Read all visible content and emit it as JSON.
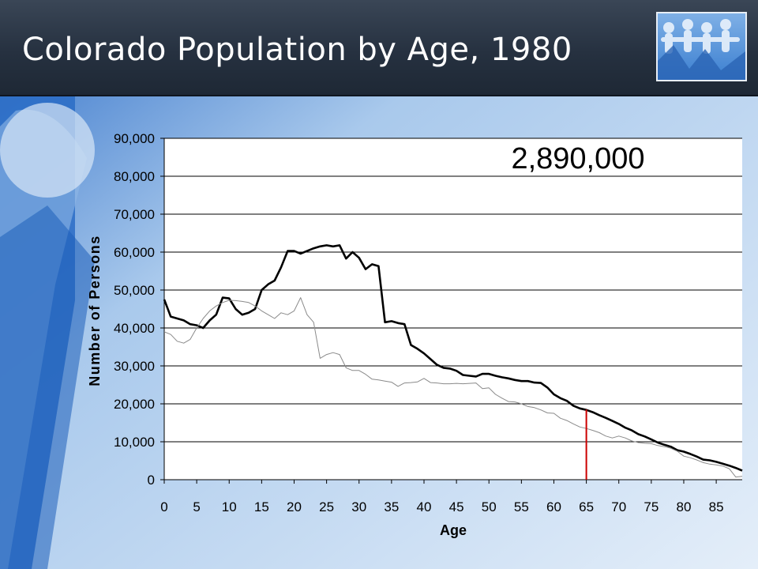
{
  "slide": {
    "title": "Colorado Population by Age, 1980",
    "accent_color": "#1e2835"
  },
  "chart_data": {
    "type": "line",
    "title": "",
    "xlabel": "Age",
    "ylabel": "Number of Persons",
    "xlim": [
      0,
      89
    ],
    "ylim": [
      0,
      90000
    ],
    "x_ticks": [
      0,
      5,
      10,
      15,
      20,
      25,
      30,
      35,
      40,
      45,
      50,
      55,
      60,
      65,
      70,
      75,
      80,
      85
    ],
    "y_ticks": [
      0,
      10000,
      20000,
      30000,
      40000,
      50000,
      60000,
      70000,
      80000,
      90000
    ],
    "y_tick_labels": [
      "0",
      "10,000",
      "20,000",
      "30,000",
      "40,000",
      "50,000",
      "60,000",
      "70,000",
      "80,000",
      "90,000"
    ],
    "grid": "horizontal",
    "annotation": "2,890,000",
    "marker_line": {
      "x": 65,
      "y_top": 18500,
      "color": "#cc0000"
    },
    "series": [
      {
        "color": "#000000",
        "stroke": "thick",
        "points": [
          [
            0,
            47500
          ],
          [
            1,
            43000
          ],
          [
            2,
            42500
          ],
          [
            3,
            42000
          ],
          [
            4,
            41000
          ],
          [
            5,
            40700
          ],
          [
            6,
            40000
          ],
          [
            7,
            42000
          ],
          [
            8,
            43500
          ],
          [
            9,
            48000
          ],
          [
            10,
            47800
          ],
          [
            11,
            45000
          ],
          [
            12,
            43500
          ],
          [
            13,
            44000
          ],
          [
            14,
            45000
          ],
          [
            15,
            50000
          ],
          [
            16,
            51500
          ],
          [
            17,
            52500
          ],
          [
            18,
            56000
          ],
          [
            19,
            60300
          ],
          [
            20,
            60300
          ],
          [
            21,
            59600
          ],
          [
            22,
            60300
          ],
          [
            23,
            61000
          ],
          [
            24,
            61500
          ],
          [
            25,
            61800
          ],
          [
            26,
            61500
          ],
          [
            27,
            61800
          ],
          [
            28,
            58300
          ],
          [
            29,
            60000
          ],
          [
            30,
            58500
          ],
          [
            31,
            55500
          ],
          [
            32,
            56800
          ],
          [
            33,
            56300
          ],
          [
            34,
            41500
          ],
          [
            35,
            41800
          ],
          [
            36,
            41300
          ],
          [
            37,
            41000
          ],
          [
            38,
            35500
          ],
          [
            39,
            34500
          ],
          [
            40,
            33300
          ],
          [
            41,
            31800
          ],
          [
            42,
            30300
          ],
          [
            43,
            29500
          ],
          [
            44,
            29300
          ],
          [
            45,
            28700
          ],
          [
            46,
            27600
          ],
          [
            47,
            27400
          ],
          [
            48,
            27200
          ],
          [
            49,
            27900
          ],
          [
            50,
            27900
          ],
          [
            51,
            27400
          ],
          [
            52,
            27000
          ],
          [
            53,
            26700
          ],
          [
            54,
            26300
          ],
          [
            55,
            26000
          ],
          [
            56,
            26000
          ],
          [
            57,
            25600
          ],
          [
            58,
            25500
          ],
          [
            59,
            24300
          ],
          [
            60,
            22500
          ],
          [
            61,
            21500
          ],
          [
            62,
            20800
          ],
          [
            63,
            19500
          ],
          [
            64,
            18800
          ],
          [
            65,
            18400
          ],
          [
            66,
            17800
          ],
          [
            67,
            17000
          ],
          [
            68,
            16300
          ],
          [
            69,
            15500
          ],
          [
            70,
            14700
          ],
          [
            71,
            13700
          ],
          [
            72,
            13000
          ],
          [
            73,
            12000
          ],
          [
            74,
            11400
          ],
          [
            75,
            10600
          ],
          [
            76,
            9800
          ],
          [
            77,
            9200
          ],
          [
            78,
            8700
          ],
          [
            79,
            7800
          ],
          [
            80,
            7400
          ],
          [
            81,
            6800
          ],
          [
            82,
            6100
          ],
          [
            83,
            5300
          ],
          [
            84,
            5100
          ],
          [
            85,
            4700
          ],
          [
            86,
            4200
          ],
          [
            87,
            3700
          ],
          [
            88,
            3100
          ],
          [
            89,
            2400
          ]
        ]
      },
      {
        "color": "#8a8a8a",
        "stroke": "thin",
        "points": [
          [
            0,
            39000
          ],
          [
            1,
            38300
          ],
          [
            2,
            36500
          ],
          [
            3,
            36000
          ],
          [
            4,
            37000
          ],
          [
            5,
            40000
          ],
          [
            6,
            42500
          ],
          [
            7,
            44500
          ],
          [
            8,
            45800
          ],
          [
            9,
            46700
          ],
          [
            10,
            47300
          ],
          [
            11,
            47200
          ],
          [
            12,
            47000
          ],
          [
            13,
            46700
          ],
          [
            14,
            45800
          ],
          [
            15,
            44500
          ],
          [
            16,
            43500
          ],
          [
            17,
            42500
          ],
          [
            18,
            44000
          ],
          [
            19,
            43500
          ],
          [
            20,
            44500
          ],
          [
            21,
            48000
          ],
          [
            22,
            43500
          ],
          [
            23,
            41500
          ],
          [
            24,
            32000
          ],
          [
            25,
            33000
          ],
          [
            26,
            33500
          ],
          [
            27,
            33000
          ],
          [
            28,
            29500
          ],
          [
            29,
            28800
          ],
          [
            30,
            28800
          ],
          [
            31,
            27800
          ],
          [
            32,
            26500
          ],
          [
            33,
            26300
          ],
          [
            34,
            26000
          ],
          [
            35,
            25700
          ],
          [
            36,
            24600
          ],
          [
            37,
            25500
          ],
          [
            38,
            25600
          ],
          [
            39,
            25800
          ],
          [
            40,
            26700
          ],
          [
            41,
            25600
          ],
          [
            42,
            25500
          ],
          [
            43,
            25300
          ],
          [
            44,
            25300
          ],
          [
            45,
            25400
          ],
          [
            46,
            25300
          ],
          [
            47,
            25400
          ],
          [
            48,
            25500
          ],
          [
            49,
            24000
          ],
          [
            50,
            24200
          ],
          [
            51,
            22500
          ],
          [
            52,
            21500
          ],
          [
            53,
            20600
          ],
          [
            54,
            20500
          ],
          [
            55,
            20000
          ],
          [
            56,
            19300
          ],
          [
            57,
            19000
          ],
          [
            58,
            18400
          ],
          [
            59,
            17600
          ],
          [
            60,
            17500
          ],
          [
            61,
            16200
          ],
          [
            62,
            15600
          ],
          [
            63,
            14700
          ],
          [
            64,
            13900
          ],
          [
            65,
            13500
          ],
          [
            66,
            13000
          ],
          [
            67,
            12400
          ],
          [
            68,
            11500
          ],
          [
            69,
            11000
          ],
          [
            70,
            11500
          ],
          [
            71,
            11000
          ],
          [
            72,
            10200
          ],
          [
            73,
            9800
          ],
          [
            74,
            9600
          ],
          [
            75,
            9500
          ],
          [
            76,
            9000
          ],
          [
            77,
            8700
          ],
          [
            78,
            8300
          ],
          [
            79,
            7500
          ],
          [
            80,
            6200
          ],
          [
            81,
            5800
          ],
          [
            82,
            5200
          ],
          [
            83,
            4500
          ],
          [
            84,
            4100
          ],
          [
            85,
            3900
          ],
          [
            86,
            3600
          ],
          [
            87,
            2900
          ],
          [
            88,
            700
          ],
          [
            89,
            900
          ]
        ]
      }
    ]
  }
}
